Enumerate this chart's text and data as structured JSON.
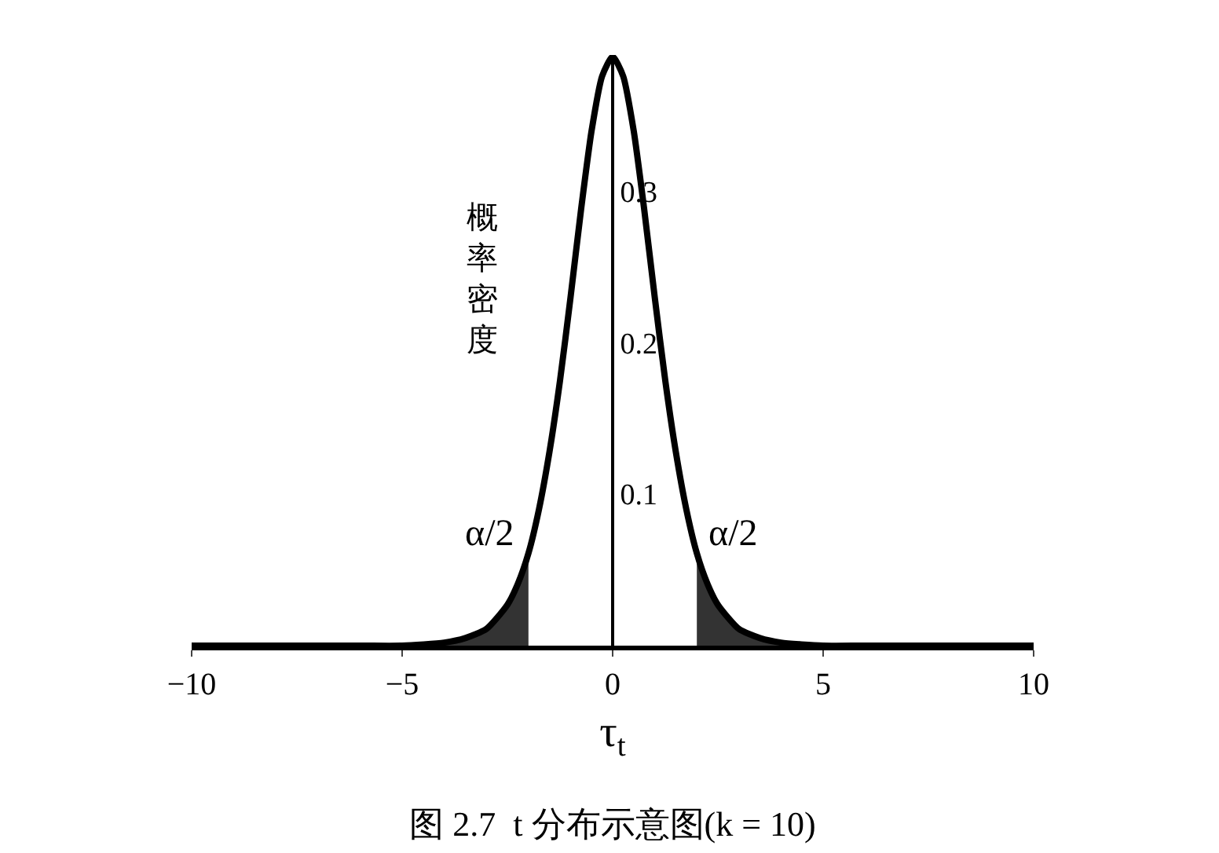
{
  "chart_data": {
    "type": "line",
    "title": "图 2.7  t 分布示意图(k = 10)",
    "xlabel": "τ$_{t}$",
    "ylabel": "概率密度",
    "xlim": [
      -10,
      10
    ],
    "xticks": [
      {
        "value": -10,
        "label": "−10"
      },
      {
        "value": -5,
        "label": "−5"
      },
      0,
      5,
      10
    ],
    "ylim": [
      0,
      0.39
    ],
    "yticks": [
      0.1,
      0.2,
      0.3
    ],
    "grid": false,
    "annotations": [
      "α/2",
      "α/2"
    ],
    "series": [
      {
        "color": "#000000",
        "x": [
          -10,
          -6,
          -5,
          -4,
          -3.5,
          -3,
          -2.5,
          -2.25,
          -2,
          -1.75,
          -1.5,
          -1.25,
          -1,
          -0.75,
          -0.5,
          -0.25,
          0,
          0.25,
          0.5,
          0.75,
          1,
          1.25,
          1.5,
          1.75,
          2,
          2.25,
          2.5,
          3,
          3.5,
          4,
          5,
          6,
          10
        ],
        "values": [
          0,
          0,
          0,
          0.002,
          0.005,
          0.011,
          0.027,
          0.041,
          0.061,
          0.09,
          0.128,
          0.175,
          0.23,
          0.288,
          0.34,
          0.376,
          0.389,
          0.376,
          0.34,
          0.288,
          0.23,
          0.175,
          0.128,
          0.09,
          0.061,
          0.041,
          0.027,
          0.011,
          0.005,
          0.002,
          0,
          0,
          0
        ]
      },
      {
        "type": "area",
        "color": "#333333",
        "x": [
          -10,
          -6,
          -5,
          -4,
          -3.5,
          -3,
          -2.5,
          -2.25,
          -2
        ],
        "values": [
          0,
          0,
          0,
          0.002,
          0.005,
          0.011,
          0.027,
          0.041,
          0.061
        ]
      },
      {
        "type": "area",
        "color": "#333333",
        "x": [
          2,
          2.25,
          2.5,
          3,
          3.5,
          4,
          5,
          6,
          10
        ],
        "values": [
          0.061,
          0.041,
          0.027,
          0.011,
          0.005,
          0.002,
          0,
          0,
          0
        ]
      }
    ]
  }
}
